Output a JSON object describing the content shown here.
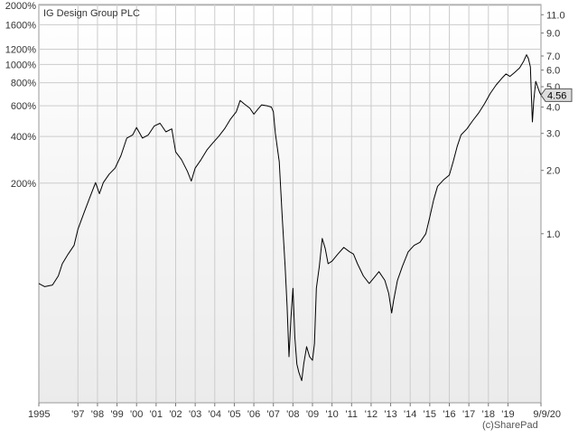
{
  "app": {
    "credit": "(c)SharePad"
  },
  "colors": {
    "plot_background_top": "#ffffff",
    "plot_background_bottom": "#ebebeb",
    "grid": "#cccccc",
    "price_line": "#000000",
    "axis_text": "#333333",
    "badge_fill": "#dddddd"
  },
  "chart_data": {
    "type": "line",
    "title": "IG Design Group PLC",
    "xlabel": "",
    "ylabel": "",
    "scale": "log",
    "grid": true,
    "legend": "none",
    "xlim": [
      1995.0,
      2020.69
    ],
    "ylim_price": [
      0.157,
      12.3
    ],
    "x_tick_labels": [
      {
        "label": "1995",
        "year": 1995
      },
      {
        "label": "'97",
        "year": 1997
      },
      {
        "label": "'98",
        "year": 1998
      },
      {
        "label": "'99",
        "year": 1999
      },
      {
        "label": "'00",
        "year": 2000
      },
      {
        "label": "'01",
        "year": 2001
      },
      {
        "label": "'02",
        "year": 2002
      },
      {
        "label": "'03",
        "year": 2003
      },
      {
        "label": "'04",
        "year": 2004
      },
      {
        "label": "'05",
        "year": 2005
      },
      {
        "label": "'06",
        "year": 2006
      },
      {
        "label": "'07",
        "year": 2007
      },
      {
        "label": "'08",
        "year": 2008
      },
      {
        "label": "'09",
        "year": 2009
      },
      {
        "label": "'10",
        "year": 2010
      },
      {
        "label": "'11",
        "year": 2011
      },
      {
        "label": "'12",
        "year": 2012
      },
      {
        "label": "'13",
        "year": 2013
      },
      {
        "label": "'14",
        "year": 2014
      },
      {
        "label": "'15",
        "year": 2015
      },
      {
        "label": "'16",
        "year": 2016
      },
      {
        "label": "'17",
        "year": 2017
      },
      {
        "label": "'18",
        "year": 2018
      },
      {
        "label": "'19",
        "year": 2019
      },
      {
        "label": "9/9/20",
        "year": 2020.69
      }
    ],
    "left_axis_ticks": [
      {
        "label": "2000%",
        "pct": 2000
      },
      {
        "label": "1600%",
        "pct": 1600
      },
      {
        "label": "1200%",
        "pct": 1200
      },
      {
        "label": "1000%",
        "pct": 1000
      },
      {
        "label": "800%",
        "pct": 800
      },
      {
        "label": "600%",
        "pct": 600
      },
      {
        "label": "400%",
        "pct": 400
      },
      {
        "label": "200%",
        "pct": 200
      }
    ],
    "right_axis_ticks": [
      {
        "label": "11.0",
        "value": 11.0
      },
      {
        "label": "9.0",
        "value": 9.0
      },
      {
        "label": "7.0",
        "value": 7.0
      },
      {
        "label": "6.0",
        "value": 6.0
      },
      {
        "label": "5.0",
        "value": 5.0
      },
      {
        "label": "4.0",
        "value": 4.0
      },
      {
        "label": "3.0",
        "value": 3.0
      },
      {
        "label": "2.0",
        "value": 2.0
      },
      {
        "label": "1.0",
        "value": 1.0
      }
    ],
    "last_price": {
      "label": "4.56",
      "value": 4.56
    },
    "series": [
      {
        "values": [
          [
            1995.0,
            0.58
          ],
          [
            1995.3,
            0.56
          ],
          [
            1995.7,
            0.57
          ],
          [
            1996.0,
            0.63
          ],
          [
            1996.2,
            0.72
          ],
          [
            1996.5,
            0.8
          ],
          [
            1996.8,
            0.88
          ],
          [
            1997.0,
            1.05
          ],
          [
            1997.3,
            1.25
          ],
          [
            1997.6,
            1.48
          ],
          [
            1997.9,
            1.75
          ],
          [
            1998.1,
            1.55
          ],
          [
            1998.3,
            1.75
          ],
          [
            1998.6,
            1.92
          ],
          [
            1998.9,
            2.05
          ],
          [
            1999.2,
            2.35
          ],
          [
            1999.5,
            2.85
          ],
          [
            1999.8,
            2.95
          ],
          [
            2000.0,
            3.2
          ],
          [
            2000.3,
            2.85
          ],
          [
            2000.6,
            2.95
          ],
          [
            2000.9,
            3.25
          ],
          [
            2001.2,
            3.35
          ],
          [
            2001.5,
            3.05
          ],
          [
            2001.8,
            3.15
          ],
          [
            2002.0,
            2.45
          ],
          [
            2002.3,
            2.25
          ],
          [
            2002.6,
            1.98
          ],
          [
            2002.8,
            1.78
          ],
          [
            2003.0,
            2.05
          ],
          [
            2003.3,
            2.25
          ],
          [
            2003.6,
            2.5
          ],
          [
            2003.9,
            2.7
          ],
          [
            2004.2,
            2.9
          ],
          [
            2004.5,
            3.15
          ],
          [
            2004.8,
            3.5
          ],
          [
            2005.1,
            3.8
          ],
          [
            2005.3,
            4.3
          ],
          [
            2005.5,
            4.15
          ],
          [
            2005.8,
            3.95
          ],
          [
            2006.0,
            3.7
          ],
          [
            2006.2,
            3.9
          ],
          [
            2006.4,
            4.1
          ],
          [
            2006.7,
            4.05
          ],
          [
            2006.9,
            4.0
          ],
          [
            2007.0,
            3.8
          ],
          [
            2007.1,
            3.0
          ],
          [
            2007.3,
            2.2
          ],
          [
            2007.45,
            1.2
          ],
          [
            2007.6,
            0.7
          ],
          [
            2007.7,
            0.45
          ],
          [
            2007.8,
            0.26
          ],
          [
            2007.9,
            0.4
          ],
          [
            2008.0,
            0.55
          ],
          [
            2008.1,
            0.32
          ],
          [
            2008.2,
            0.24
          ],
          [
            2008.3,
            0.22
          ],
          [
            2008.45,
            0.2
          ],
          [
            2008.55,
            0.24
          ],
          [
            2008.7,
            0.29
          ],
          [
            2008.85,
            0.26
          ],
          [
            2009.0,
            0.25
          ],
          [
            2009.1,
            0.3
          ],
          [
            2009.2,
            0.55
          ],
          [
            2009.35,
            0.7
          ],
          [
            2009.5,
            0.95
          ],
          [
            2009.65,
            0.85
          ],
          [
            2009.8,
            0.72
          ],
          [
            2010.0,
            0.74
          ],
          [
            2010.3,
            0.8
          ],
          [
            2010.6,
            0.86
          ],
          [
            2010.9,
            0.82
          ],
          [
            2011.1,
            0.8
          ],
          [
            2011.3,
            0.72
          ],
          [
            2011.6,
            0.63
          ],
          [
            2011.9,
            0.58
          ],
          [
            2012.1,
            0.61
          ],
          [
            2012.4,
            0.66
          ],
          [
            2012.7,
            0.6
          ],
          [
            2012.9,
            0.52
          ],
          [
            2013.05,
            0.42
          ],
          [
            2013.15,
            0.48
          ],
          [
            2013.35,
            0.6
          ],
          [
            2013.6,
            0.7
          ],
          [
            2013.9,
            0.82
          ],
          [
            2014.2,
            0.88
          ],
          [
            2014.5,
            0.91
          ],
          [
            2014.8,
            1.0
          ],
          [
            2015.0,
            1.2
          ],
          [
            2015.2,
            1.45
          ],
          [
            2015.4,
            1.68
          ],
          [
            2015.7,
            1.8
          ],
          [
            2016.0,
            1.9
          ],
          [
            2016.2,
            2.2
          ],
          [
            2016.4,
            2.6
          ],
          [
            2016.6,
            2.95
          ],
          [
            2016.9,
            3.15
          ],
          [
            2017.2,
            3.45
          ],
          [
            2017.5,
            3.75
          ],
          [
            2017.8,
            4.15
          ],
          [
            2018.1,
            4.65
          ],
          [
            2018.4,
            5.1
          ],
          [
            2018.7,
            5.5
          ],
          [
            2018.9,
            5.75
          ],
          [
            2019.1,
            5.6
          ],
          [
            2019.35,
            5.85
          ],
          [
            2019.6,
            6.15
          ],
          [
            2019.8,
            6.6
          ],
          [
            2019.95,
            7.1
          ],
          [
            2020.05,
            6.8
          ],
          [
            2020.15,
            6.2
          ],
          [
            2020.2,
            4.5
          ],
          [
            2020.25,
            3.4
          ],
          [
            2020.32,
            4.3
          ],
          [
            2020.42,
            5.3
          ],
          [
            2020.52,
            5.0
          ],
          [
            2020.62,
            4.7
          ],
          [
            2020.69,
            4.56
          ]
        ]
      }
    ]
  }
}
